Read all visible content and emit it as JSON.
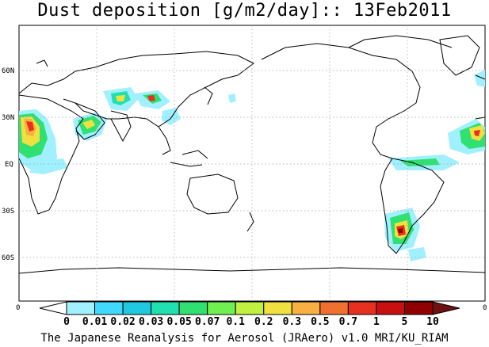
{
  "title": "Dust deposition [g/m2/day]:: 13Feb2011",
  "credit": "The Japanese Reanalysis for Aerosol (JRAero) v1.0 MRI/KU_RIAM",
  "lat_labels": [
    "60N",
    "30N",
    "EQ",
    "30S",
    "60S"
  ],
  "edge_labels": {
    "left": "0",
    "right": "0"
  },
  "colorbar": {
    "ticks": [
      "0",
      "0.01",
      "0.02",
      "0.03",
      "0.05",
      "0.07",
      "0.1",
      "0.2",
      "0.3",
      "0.5",
      "0.7",
      "1",
      "5",
      "10"
    ],
    "colors": [
      "#ffffff",
      "#a0f0ff",
      "#40d8ff",
      "#20c8e0",
      "#20e0b0",
      "#30e070",
      "#70f050",
      "#c0f040",
      "#f0e040",
      "#f8b040",
      "#f07030",
      "#e83020",
      "#c81010",
      "#900000",
      "#701010"
    ]
  },
  "dust_palette": {
    "light_cyan": "#a0f0ff",
    "cyan": "#40d8ff",
    "teal": "#20e0b0",
    "green": "#30e070",
    "yellow": "#f0e040",
    "orange": "#f8b040",
    "red": "#e83020",
    "dark_red": "#900000"
  }
}
